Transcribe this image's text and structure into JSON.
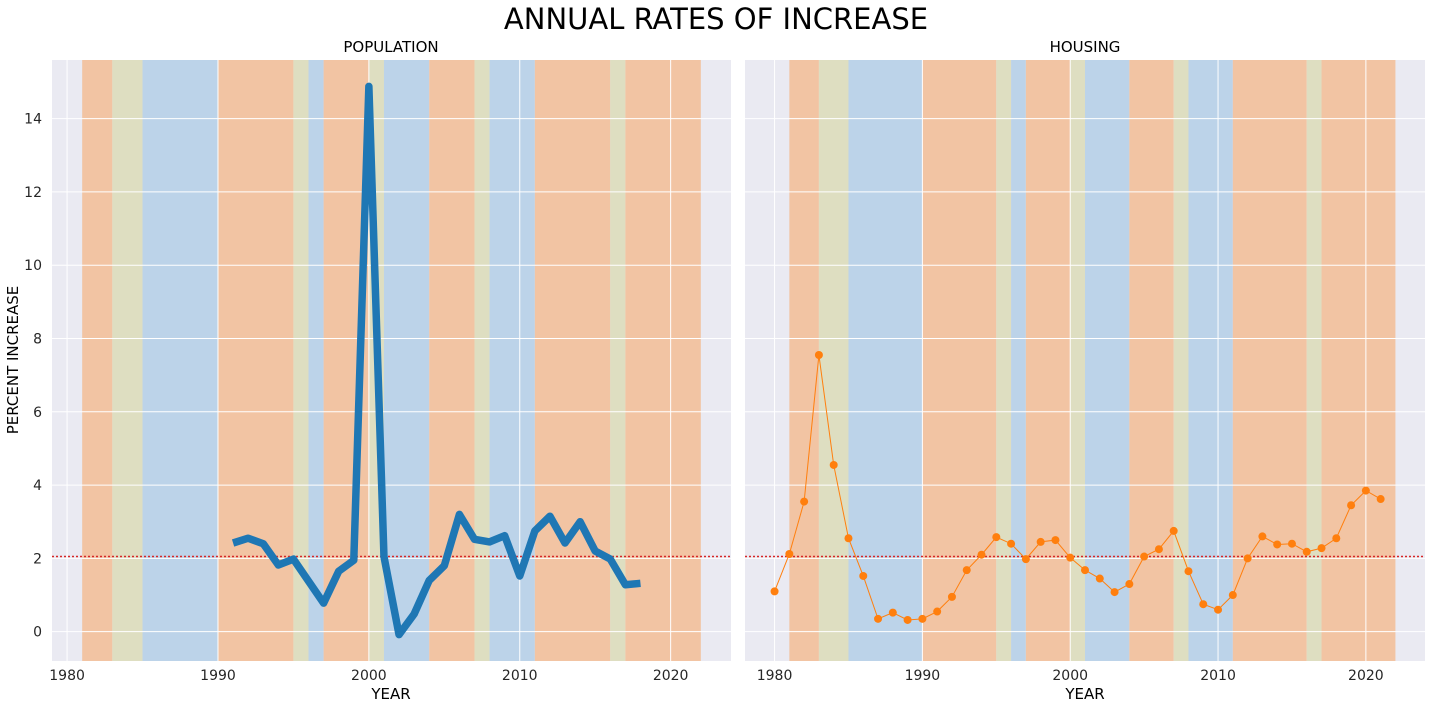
{
  "chart_data": [
    {
      "type": "line",
      "suptitle": "ANNUAL RATES OF INCREASE",
      "title": "POPULATION",
      "xlabel": "YEAR",
      "ylabel": "PERCENT INCREASE",
      "xlim": [
        1979,
        2024
      ],
      "ylim": [
        -0.8,
        15.6
      ],
      "xticks": [
        1980,
        1990,
        2000,
        2010,
        2020
      ],
      "yticks": [
        0,
        2,
        4,
        6,
        8,
        10,
        12,
        14
      ],
      "reference_line": 2.05,
      "reference_color": "#d62728",
      "background_color": "#eaeaf2",
      "bands": [
        {
          "from": 1981,
          "to": 1983,
          "color": "#f2c4a3"
        },
        {
          "from": 1983,
          "to": 1985,
          "color": "#dedec1"
        },
        {
          "from": 1985,
          "to": 1990,
          "color": "#bcd3e9"
        },
        {
          "from": 1990,
          "to": 1995,
          "color": "#f2c4a3"
        },
        {
          "from": 1995,
          "to": 1996,
          "color": "#dedec1"
        },
        {
          "from": 1996,
          "to": 1997,
          "color": "#bcd3e9"
        },
        {
          "from": 1997,
          "to": 2000,
          "color": "#f2c4a3"
        },
        {
          "from": 2000,
          "to": 2001,
          "color": "#dedec1"
        },
        {
          "from": 2001,
          "to": 2004,
          "color": "#bcd3e9"
        },
        {
          "from": 2004,
          "to": 2007,
          "color": "#f2c4a3"
        },
        {
          "from": 2007,
          "to": 2008,
          "color": "#dedec1"
        },
        {
          "from": 2008,
          "to": 2011,
          "color": "#bcd3e9"
        },
        {
          "from": 2011,
          "to": 2016,
          "color": "#f2c4a3"
        },
        {
          "from": 2016,
          "to": 2017,
          "color": "#dedec1"
        },
        {
          "from": 2017,
          "to": 2022,
          "color": "#f2c4a3"
        }
      ],
      "series": [
        {
          "color": "#1f77b4",
          "style": "thick-line",
          "x": [
            1991,
            1992,
            1993,
            1994,
            1995,
            1996,
            1997,
            1998,
            1999,
            2000,
            2001,
            2002,
            2003,
            2004,
            2005,
            2006,
            2007,
            2008,
            2009,
            2010,
            2011,
            2012,
            2013,
            2014,
            2015,
            2016,
            2017,
            2018
          ],
          "values": [
            2.42,
            2.55,
            2.4,
            1.82,
            1.98,
            1.38,
            0.78,
            1.65,
            1.95,
            14.88,
            2.05,
            -0.08,
            0.48,
            1.4,
            1.8,
            3.2,
            2.52,
            2.45,
            2.62,
            1.52,
            2.75,
            3.15,
            2.42,
            3.0,
            2.2,
            1.98,
            1.28,
            1.32
          ]
        }
      ]
    },
    {
      "type": "line",
      "title": "HOUSING",
      "xlabel": "YEAR",
      "xlim": [
        1978,
        2024
      ],
      "ylim": [
        -0.8,
        15.6
      ],
      "xticks": [
        1980,
        1990,
        2000,
        2010,
        2020
      ],
      "yticks": [
        0,
        2,
        4,
        6,
        8,
        10,
        12,
        14
      ],
      "reference_line": 2.05,
      "reference_color": "#d62728",
      "background_color": "#eaeaf2",
      "bands": [
        {
          "from": 1981,
          "to": 1983,
          "color": "#f2c4a3"
        },
        {
          "from": 1983,
          "to": 1985,
          "color": "#dedec1"
        },
        {
          "from": 1985,
          "to": 1990,
          "color": "#bcd3e9"
        },
        {
          "from": 1990,
          "to": 1995,
          "color": "#f2c4a3"
        },
        {
          "from": 1995,
          "to": 1996,
          "color": "#dedec1"
        },
        {
          "from": 1996,
          "to": 1997,
          "color": "#bcd3e9"
        },
        {
          "from": 1997,
          "to": 2000,
          "color": "#f2c4a3"
        },
        {
          "from": 2000,
          "to": 2001,
          "color": "#dedec1"
        },
        {
          "from": 2001,
          "to": 2004,
          "color": "#bcd3e9"
        },
        {
          "from": 2004,
          "to": 2007,
          "color": "#f2c4a3"
        },
        {
          "from": 2007,
          "to": 2008,
          "color": "#dedec1"
        },
        {
          "from": 2008,
          "to": 2011,
          "color": "#bcd3e9"
        },
        {
          "from": 2011,
          "to": 2016,
          "color": "#f2c4a3"
        },
        {
          "from": 2016,
          "to": 2017,
          "color": "#dedec1"
        },
        {
          "from": 2017,
          "to": 2022,
          "color": "#f2c4a3"
        }
      ],
      "series": [
        {
          "color": "#ff7f0e",
          "style": "line-markers",
          "x": [
            1980,
            1981,
            1982,
            1983,
            1984,
            1985,
            1986,
            1987,
            1988,
            1989,
            1990,
            1991,
            1992,
            1993,
            1994,
            1995,
            1996,
            1997,
            1998,
            1999,
            2000,
            2001,
            2002,
            2003,
            2004,
            2005,
            2006,
            2007,
            2008,
            2009,
            2010,
            2011,
            2012,
            2013,
            2014,
            2015,
            2016,
            2017,
            2018,
            2019,
            2020,
            2021
          ],
          "values": [
            1.1,
            2.12,
            3.55,
            7.55,
            4.55,
            2.55,
            1.52,
            0.35,
            0.52,
            0.32,
            0.35,
            0.55,
            0.95,
            1.68,
            2.1,
            2.58,
            2.4,
            1.98,
            2.45,
            2.5,
            2.02,
            1.68,
            1.45,
            1.08,
            1.3,
            2.05,
            2.25,
            2.75,
            1.65,
            0.75,
            0.6,
            1.0,
            2.0,
            2.6,
            2.38,
            2.4,
            2.18,
            2.28,
            2.55,
            3.45,
            3.85,
            3.62
          ]
        }
      ]
    }
  ]
}
